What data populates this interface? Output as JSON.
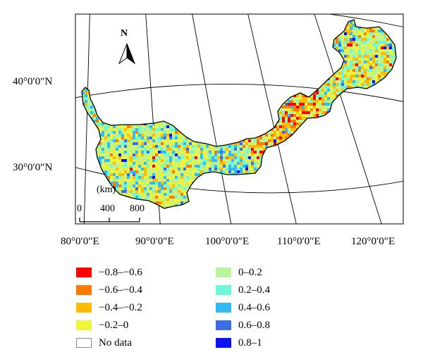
{
  "north": "N",
  "latitudes": [
    "40°0′0″N",
    "30°0′0″N"
  ],
  "longitudes": [
    "80°0′0″E",
    "90°0′0″E",
    "100°0′0″E",
    "110°0′0″E",
    "120°0′0″E"
  ],
  "scale": {
    "unit": "(km)",
    "ticks": [
      "0",
      "400",
      "800"
    ]
  },
  "legend": [
    {
      "label": "−0.8–−0.6",
      "color": "#ff0000"
    },
    {
      "label": "−0.6–−0.4",
      "color": "#ff7a00"
    },
    {
      "label": "−0.4–−0.2",
      "color": "#ffbb00"
    },
    {
      "label": "−0.2–0",
      "color": "#eef53a"
    },
    {
      "label": "No data",
      "color": "#ffffff"
    },
    {
      "label": "0–0.2",
      "color": "#b6f59a"
    },
    {
      "label": "0.2–0.4",
      "color": "#6ef7d8"
    },
    {
      "label": "0.4–0.6",
      "color": "#35b9f5"
    },
    {
      "label": "0.6–0.8",
      "color": "#3c6ce8"
    },
    {
      "label": "0.8–1",
      "color": "#0a14f0"
    }
  ]
}
